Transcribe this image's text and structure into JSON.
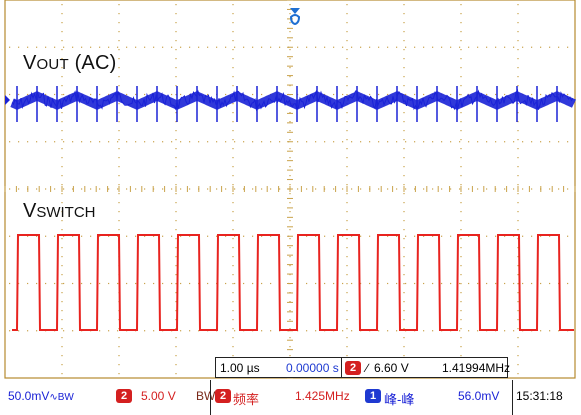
{
  "waveforms": {
    "vout_label": "VOUT (AC)",
    "vswitch_label": "VSWITCH",
    "vout_color": "#1a22d6",
    "vswitch_color": "#e8231f",
    "grid_color": "#c9a24a",
    "trigger_marker_color": "#1f6fd1"
  },
  "timebase": {
    "time_per_div": "1.00 µs",
    "delay": "0.00000 s"
  },
  "trigger": {
    "channel": "2",
    "slope_icon": "rising-edge-icon",
    "level": "6.60 V",
    "frequency": "1.41994MHz"
  },
  "status": {
    "ch1_scale": "50.0mV",
    "ch1_coupling": "∿BW",
    "ch2_channel": "2",
    "ch2_scale": "5.00 V",
    "ch2_bw": "BW",
    "meas1_channel": "2",
    "meas1_name": "频率",
    "meas1_value": "1.425MHz",
    "meas2_channel": "1",
    "meas2_name": "峰-峰",
    "meas2_value": "56.0mV",
    "clock": "15:31:18"
  }
}
